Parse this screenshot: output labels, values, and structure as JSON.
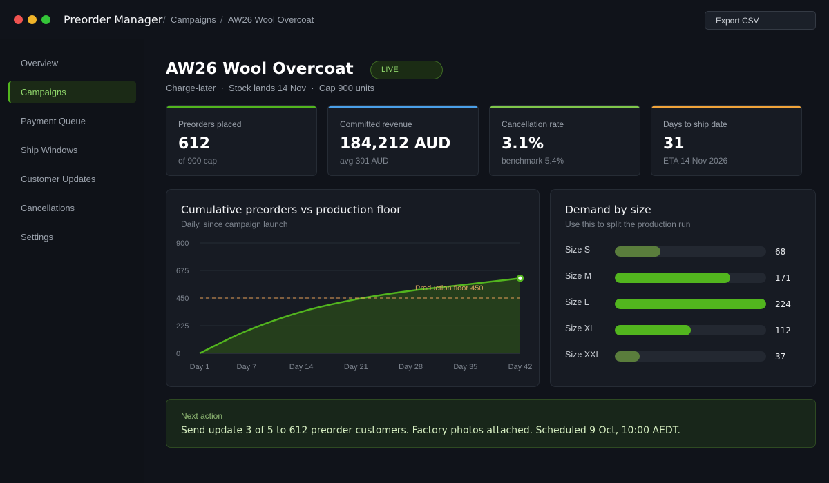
{
  "window": {
    "app_title": "Preorder Manager",
    "breadcrumb": [
      "Campaigns",
      "AW26 Wool Overcoat"
    ],
    "breadcrumb_separator": "/",
    "export_label": "Export CSV"
  },
  "sidebar": {
    "items": [
      {
        "label": "Overview",
        "active": false
      },
      {
        "label": "Campaigns",
        "active": true
      },
      {
        "label": "Payment Queue",
        "active": false
      },
      {
        "label": "Ship Windows",
        "active": false
      },
      {
        "label": "Customer Updates",
        "active": false
      },
      {
        "label": "Cancellations",
        "active": false
      },
      {
        "label": "Settings",
        "active": false
      }
    ]
  },
  "header": {
    "title": "AW26 Wool Overcoat",
    "status": "LIVE",
    "subtitle": "Charge-later  ·  Stock lands 14 Nov  ·  Cap 900 units"
  },
  "kpis": [
    {
      "label": "Preorders placed",
      "value": "612",
      "sub": "of 900 cap",
      "accent": "#52b51e"
    },
    {
      "label": "Committed revenue",
      "value": "184,212 AUD",
      "sub": "avg 301 AUD",
      "accent": "#4a9fe8"
    },
    {
      "label": "Cancellation rate",
      "value": "3.1%",
      "sub": "benchmark 5.4%",
      "accent": "#7fc64a"
    },
    {
      "label": "Days to ship date",
      "value": "31",
      "sub": "ETA 14 Nov 2026",
      "accent": "#f0a33a"
    }
  ],
  "cumulative_panel": {
    "title": "Cumulative preorders vs production floor",
    "subtitle": "Daily, since campaign launch"
  },
  "size_panel": {
    "title": "Demand by size",
    "subtitle": "Use this to split the production run"
  },
  "chart_data": [
    {
      "type": "area",
      "title": "Cumulative preorders vs production floor",
      "subtitle": "Daily, since campaign launch",
      "x": [
        1,
        7,
        14,
        21,
        28,
        35,
        42
      ],
      "x_tick_labels": [
        "Day 1",
        "Day 7",
        "Day 14",
        "Day 21",
        "Day 28",
        "Day 35",
        "Day 42"
      ],
      "series": [
        {
          "values": [
            0,
            182,
            338,
            440,
            510,
            560,
            612
          ],
          "color": "#52b51e"
        }
      ],
      "reference_line": {
        "value": 450,
        "label": "Production floor 450",
        "color": "#e8a05a"
      },
      "y_ticks": [
        0,
        225,
        450,
        675,
        900
      ],
      "ylim": [
        0,
        900
      ],
      "xlim": [
        1,
        42
      ],
      "grid": true,
      "legend": "none"
    },
    {
      "type": "bar",
      "orientation": "horizontal",
      "title": "Demand by size",
      "subtitle": "Use this to split the production run",
      "categories": [
        "Size S",
        "Size M",
        "Size L",
        "Size XL",
        "Size XXL"
      ],
      "values": [
        68,
        171,
        224,
        112,
        37
      ],
      "xlim": [
        0,
        224
      ],
      "bar_colors": [
        "#5a7d3c",
        "#52b51e",
        "#52b51e",
        "#52b51e",
        "#5a7d3c"
      ]
    }
  ],
  "next_action": {
    "label": "Next action",
    "text": "Send update 3 of 5 to 612 preorder customers. Factory photos attached. Scheduled 9 Oct, 10:00 AEDT."
  }
}
